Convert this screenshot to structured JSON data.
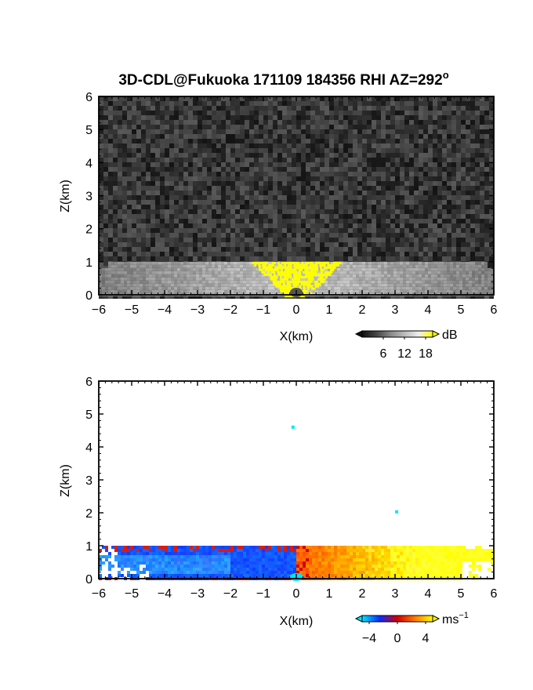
{
  "chart_data": {
    "title": "3D-CDL@Fukuoka 171109 184356 RHI AZ=292",
    "title_superscript": "o",
    "panels": [
      {
        "type": "heatmap",
        "quantity": "backscatter intensity",
        "xlabel": "X(km)",
        "ylabel": "Z(km)",
        "xlim": [
          -6,
          6
        ],
        "ylim": [
          0,
          6
        ],
        "x_ticks": [
          -6,
          -5,
          -4,
          -3,
          -2,
          -1,
          0,
          1,
          2,
          3,
          4,
          5,
          6
        ],
        "y_ticks": [
          0,
          1,
          2,
          3,
          4,
          5,
          6
        ],
        "colorbar": {
          "unit": "dB",
          "unit_superscript": "",
          "ticks": [
            6,
            12,
            18
          ],
          "range": [
            0,
            20
          ],
          "colors": [
            "#111111",
            "#444444",
            "#888888",
            "#bbbbbb",
            "#eeeeee",
            "#ffff00"
          ]
        },
        "field": {
          "background": "noise 0-6 dB above 1 km",
          "layer_top_km": 1.0,
          "saturated_region": "yellow cone near X=0 below 1 km"
        }
      },
      {
        "type": "heatmap",
        "quantity": "radial velocity",
        "xlabel": "X(km)",
        "ylabel": "Z(km)",
        "xlim": [
          -6,
          6
        ],
        "ylim": [
          0,
          6
        ],
        "x_ticks": [
          -6,
          -5,
          -4,
          -3,
          -2,
          -1,
          0,
          1,
          2,
          3,
          4,
          5,
          6
        ],
        "y_ticks": [
          0,
          1,
          2,
          3,
          4,
          5,
          6
        ],
        "colorbar": {
          "unit": "ms",
          "unit_superscript": "−1",
          "ticks": [
            -4,
            0,
            4
          ],
          "tick_labels": [
            "−4",
            "0",
            "4"
          ],
          "range": [
            -5,
            5
          ],
          "colors": [
            "#00e5ff",
            "#0a2bff",
            "#d40000",
            "#ff7a00",
            "#ffff00"
          ]
        },
        "field": {
          "negative_side": "X < 0, about -2 to -1 m/s",
          "positive_side": "X > 0, about +2 to +4 m/s",
          "layer_top_km": 1.0,
          "isolated_points": [
            {
              "x": -0.1,
              "y": 4.6,
              "value": -4
            },
            {
              "x": 3.05,
              "y": 2.03,
              "value": -4
            }
          ]
        }
      }
    ]
  }
}
